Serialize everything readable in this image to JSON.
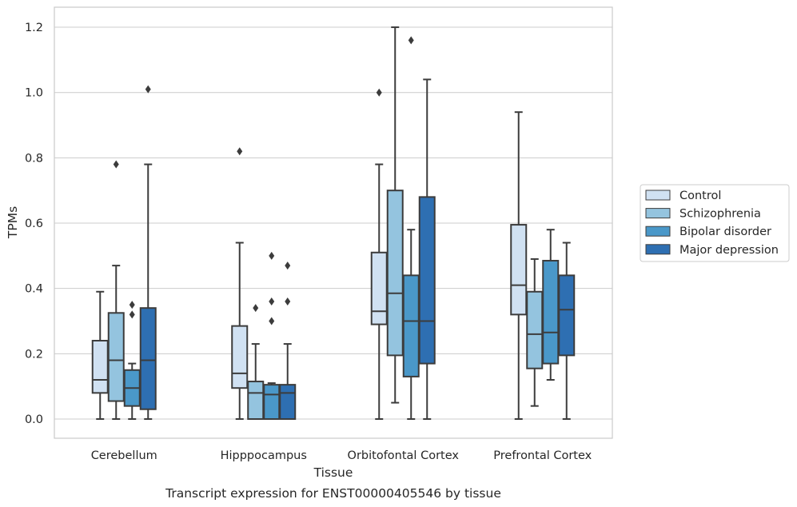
{
  "caption": "Transcript expression for ENST00000405546 by tissue",
  "colors": {
    "Control": "#d0e1f2",
    "Schizophrenia": "#94c4df",
    "Bipolar disorder": "#4a98c9",
    "Major depression": "#2e6fb2",
    "edge": "#3c3c3c",
    "grid": "#cccccc",
    "frame": "#cccccc"
  },
  "chart_data": {
    "type": "box",
    "title": "",
    "xlabel": "Tissue",
    "ylabel": "TPMs",
    "ylim": [
      -0.06,
      1.26
    ],
    "yticks": [
      0.0,
      0.2,
      0.4,
      0.6,
      0.8,
      1.0,
      1.2
    ],
    "ytick_labels": [
      "0.0",
      "0.2",
      "0.4",
      "0.6",
      "0.8",
      "1.0",
      "1.2"
    ],
    "grid": "horizontal",
    "legend_position": "right",
    "categories": [
      "Cerebellum",
      "Hipppocampus",
      "Orbitofontal Cortex",
      "Prefrontal Cortex"
    ],
    "series": [
      {
        "name": "Control",
        "boxes": [
          {
            "whisker_low": 0.0,
            "q1": 0.08,
            "median": 0.12,
            "q3": 0.24,
            "whisker_high": 0.39,
            "outliers": []
          },
          {
            "whisker_low": 0.0,
            "q1": 0.095,
            "median": 0.14,
            "q3": 0.285,
            "whisker_high": 0.54,
            "outliers": [
              0.82
            ]
          },
          {
            "whisker_low": 0.0,
            "q1": 0.29,
            "median": 0.33,
            "q3": 0.51,
            "whisker_high": 0.78,
            "outliers": [
              1.0
            ]
          },
          {
            "whisker_low": 0.0,
            "q1": 0.32,
            "median": 0.41,
            "q3": 0.595,
            "whisker_high": 0.94,
            "outliers": []
          }
        ]
      },
      {
        "name": "Schizophrenia",
        "boxes": [
          {
            "whisker_low": 0.0,
            "q1": 0.055,
            "median": 0.18,
            "q3": 0.325,
            "whisker_high": 0.47,
            "outliers": [
              0.78
            ]
          },
          {
            "whisker_low": 0.0,
            "q1": 0.0,
            "median": 0.08,
            "q3": 0.115,
            "whisker_high": 0.23,
            "outliers": [
              0.34
            ]
          },
          {
            "whisker_low": 0.05,
            "q1": 0.195,
            "median": 0.385,
            "q3": 0.7,
            "whisker_high": 1.2,
            "outliers": []
          },
          {
            "whisker_low": 0.04,
            "q1": 0.155,
            "median": 0.26,
            "q3": 0.39,
            "whisker_high": 0.49,
            "outliers": []
          }
        ]
      },
      {
        "name": "Bipolar disorder",
        "boxes": [
          {
            "whisker_low": 0.0,
            "q1": 0.04,
            "median": 0.095,
            "q3": 0.15,
            "whisker_high": 0.17,
            "outliers": [
              0.32,
              0.35
            ]
          },
          {
            "whisker_low": 0.0,
            "q1": 0.0,
            "median": 0.075,
            "q3": 0.105,
            "whisker_high": 0.11,
            "outliers": [
              0.3,
              0.36,
              0.5
            ]
          },
          {
            "whisker_low": 0.0,
            "q1": 0.13,
            "median": 0.3,
            "q3": 0.44,
            "whisker_high": 0.58,
            "outliers": [
              1.16
            ]
          },
          {
            "whisker_low": 0.12,
            "q1": 0.17,
            "median": 0.265,
            "q3": 0.485,
            "whisker_high": 0.58,
            "outliers": []
          }
        ]
      },
      {
        "name": "Major depression",
        "boxes": [
          {
            "whisker_low": 0.0,
            "q1": 0.03,
            "median": 0.18,
            "q3": 0.34,
            "whisker_high": 0.78,
            "outliers": [
              1.01
            ]
          },
          {
            "whisker_low": 0.0,
            "q1": 0.0,
            "median": 0.08,
            "q3": 0.105,
            "whisker_high": 0.23,
            "outliers": [
              0.36,
              0.47
            ]
          },
          {
            "whisker_low": 0.0,
            "q1": 0.17,
            "median": 0.3,
            "q3": 0.68,
            "whisker_high": 1.04,
            "outliers": []
          },
          {
            "whisker_low": 0.0,
            "q1": 0.195,
            "median": 0.335,
            "q3": 0.44,
            "whisker_high": 0.54,
            "outliers": []
          }
        ]
      }
    ]
  }
}
